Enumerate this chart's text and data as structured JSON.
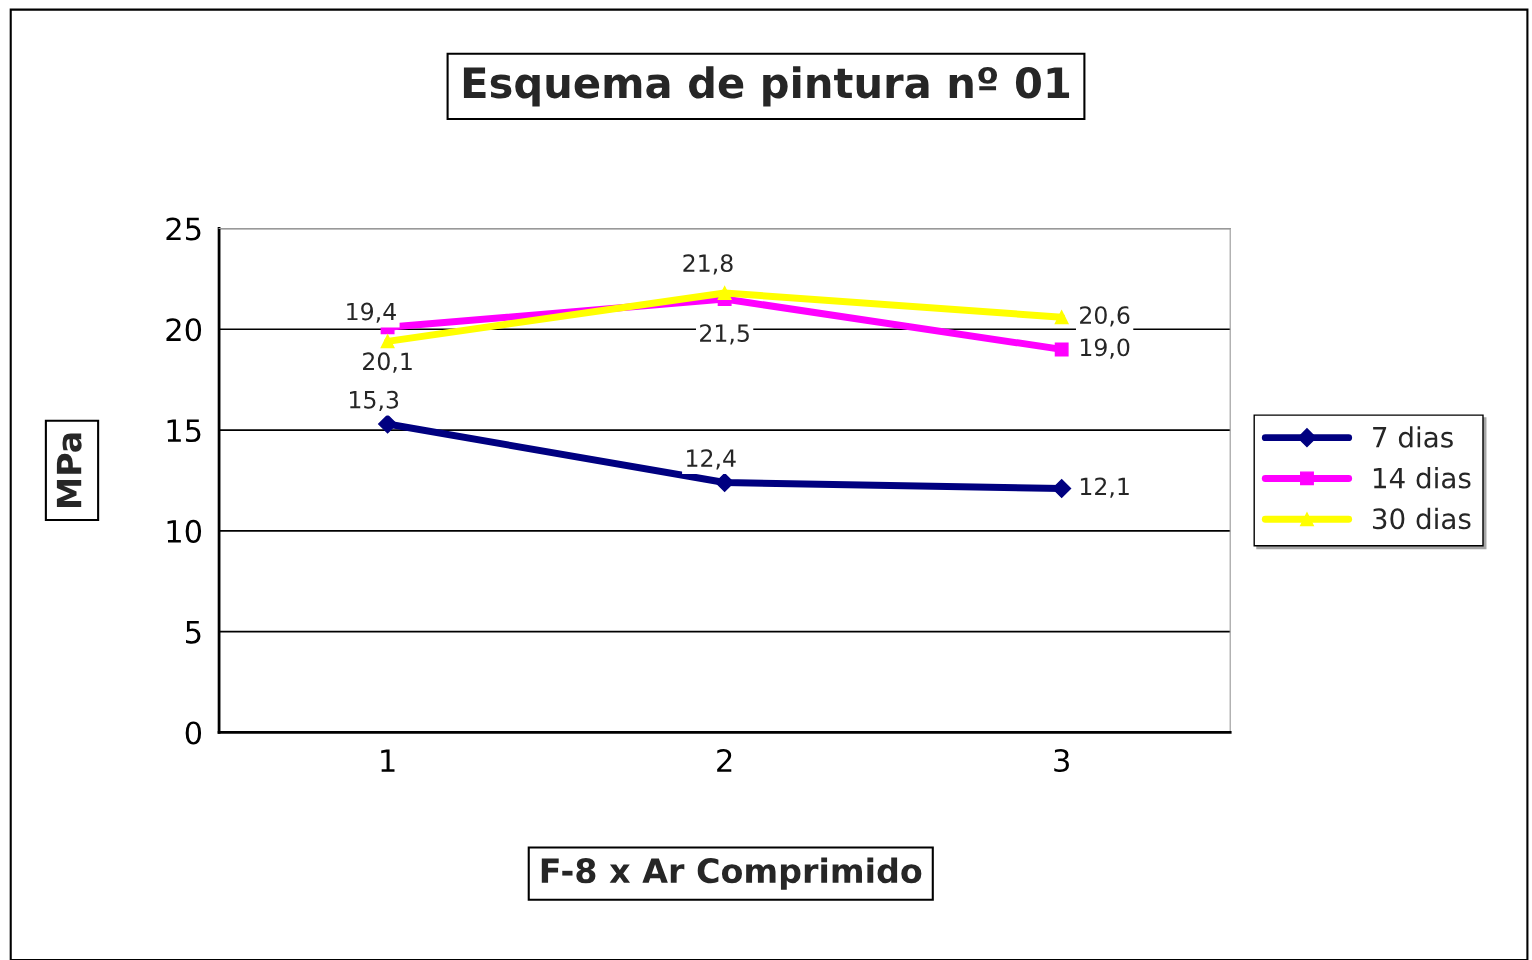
{
  "chart_data": {
    "type": "line",
    "title": "Esquema de pintura nº 01",
    "xlabel": "F-8 x Ar Comprimido",
    "ylabel": "MPa",
    "categories": [
      "1",
      "2",
      "3"
    ],
    "series": [
      {
        "name": "7 dias",
        "color": "#000080",
        "marker": "diamond",
        "values": [
          15.3,
          12.4,
          12.1
        ],
        "value_labels": [
          "15,3",
          "12,4",
          "12,1"
        ]
      },
      {
        "name": "14 dias",
        "color": "#ff00ff",
        "marker": "square",
        "values": [
          20.1,
          21.5,
          19.0
        ],
        "value_labels": [
          "20,1",
          "21,5",
          "19,0"
        ]
      },
      {
        "name": "30 dias",
        "color": "#ffff00",
        "marker": "triangle",
        "values": [
          19.4,
          21.8,
          20.6
        ],
        "value_labels": [
          "19,4",
          "21,8",
          "20,6"
        ]
      }
    ],
    "ylim": [
      0,
      25
    ],
    "yticks": [
      0,
      5,
      10,
      15,
      20,
      25
    ],
    "grid": "y",
    "legend": "right",
    "line_style": "solid"
  }
}
